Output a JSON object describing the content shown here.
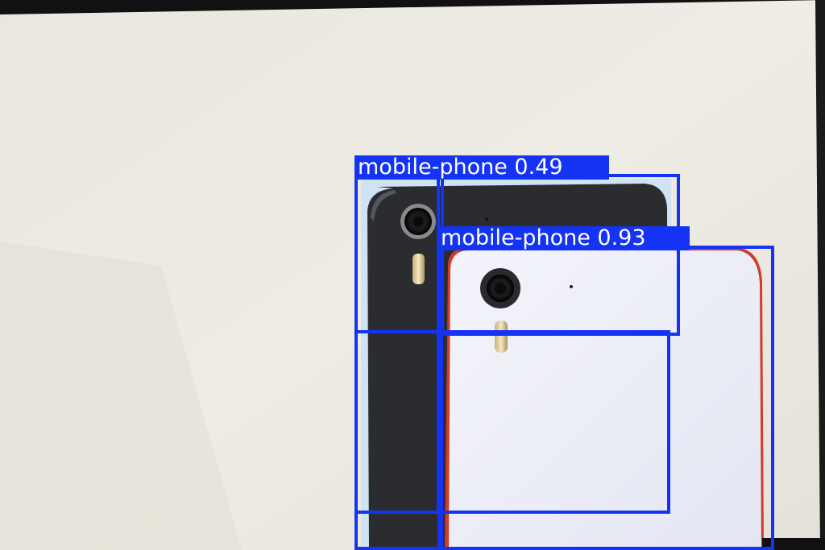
{
  "image": {
    "description_colors": {
      "background": "#ece9df",
      "dark_phone": "#2c2d31",
      "white_phone": "#eef0f8",
      "white_phone_rim": "#d23a2a",
      "box": "#1433f5",
      "label_text": "#ffffff"
    }
  },
  "detections": [
    {
      "class": "mobile-phone",
      "confidence": "0.49",
      "label": "mobile-phone 0.49"
    },
    {
      "class": "mobile-phone",
      "confidence": "0.93",
      "label": "mobile-phone 0.93"
    }
  ]
}
